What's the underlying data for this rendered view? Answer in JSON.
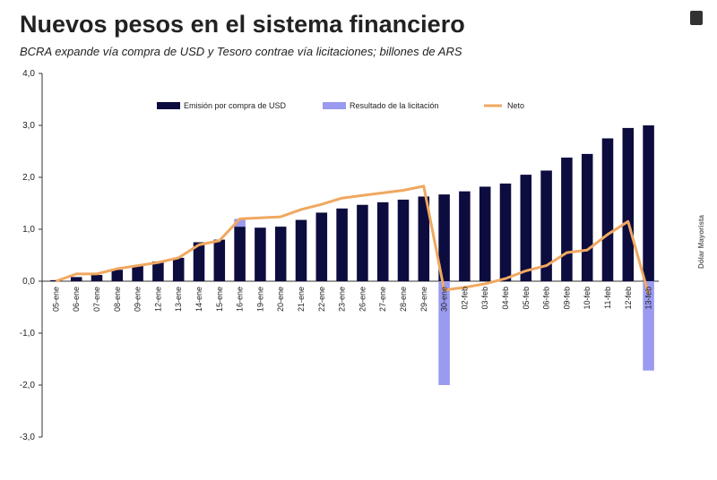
{
  "chart_data": {
    "type": "bar",
    "title": "Nuevos pesos en el sistema financiero",
    "subtitle": "BCRA expande vía compra de USD y Tesoro contrae vía licitaciones; billones de ARS",
    "y2_label": "Dólar Mayorista",
    "categories": [
      "05-ene",
      "06-ene",
      "07-ene",
      "08-ene",
      "09-ene",
      "12-ene",
      "13-ene",
      "14-ene",
      "15-ene",
      "16-ene",
      "19-ene",
      "20-ene",
      "21-ene",
      "22-ene",
      "23-ene",
      "26-ene",
      "27-ene",
      "28-ene",
      "29-ene",
      "30-ene",
      "02-feb",
      "03-feb",
      "04-feb",
      "05-feb",
      "06-feb",
      "09-feb",
      "10-feb",
      "11-feb",
      "12-feb",
      "13-feb"
    ],
    "series": [
      {
        "name": "Emisión por compra de USD",
        "color": "#0d0c3f",
        "kind": "bar",
        "values": [
          0.02,
          0.08,
          0.12,
          0.22,
          0.3,
          0.38,
          0.45,
          0.75,
          0.8,
          1.05,
          1.03,
          1.05,
          1.18,
          1.32,
          1.4,
          1.47,
          1.52,
          1.57,
          1.63,
          1.67,
          1.73,
          1.82,
          1.88,
          2.05,
          2.13,
          2.38,
          2.45,
          2.75,
          2.95,
          3.0
        ]
      },
      {
        "name": "Resultado de la licitación",
        "color": "#9a9af0",
        "kind": "bar",
        "values": [
          0,
          0,
          0,
          0,
          0,
          0,
          0,
          0,
          0,
          0.15,
          0,
          0,
          0,
          0,
          0,
          0,
          0,
          0,
          0,
          -2.0,
          0,
          0,
          0,
          0,
          0,
          0,
          0,
          0,
          0,
          -1.72
        ]
      },
      {
        "name": "Neto",
        "color": "#f0a860",
        "kind": "line",
        "values": [
          0,
          0.14,
          0.14,
          0.24,
          0.3,
          0.36,
          0.45,
          0.7,
          0.78,
          1.2,
          1.22,
          1.24,
          1.38,
          1.48,
          1.6,
          1.65,
          1.7,
          1.75,
          1.83,
          -0.17,
          -0.12,
          -0.05,
          0.05,
          0.2,
          0.3,
          0.55,
          0.6,
          0.9,
          1.15,
          -0.25
        ]
      }
    ],
    "ylim": [
      -3,
      4
    ],
    "yticks": [
      {
        "value": -3,
        "label": "-3,0"
      },
      {
        "value": -2,
        "label": "-2,0"
      },
      {
        "value": -1,
        "label": "-1,0"
      },
      {
        "value": 0,
        "label": "0,0"
      },
      {
        "value": 1,
        "label": "1,0"
      },
      {
        "value": 2,
        "label": "2,0"
      },
      {
        "value": 3,
        "label": "3,0"
      },
      {
        "value": 4,
        "label": "4,0"
      }
    ],
    "grid": false
  }
}
